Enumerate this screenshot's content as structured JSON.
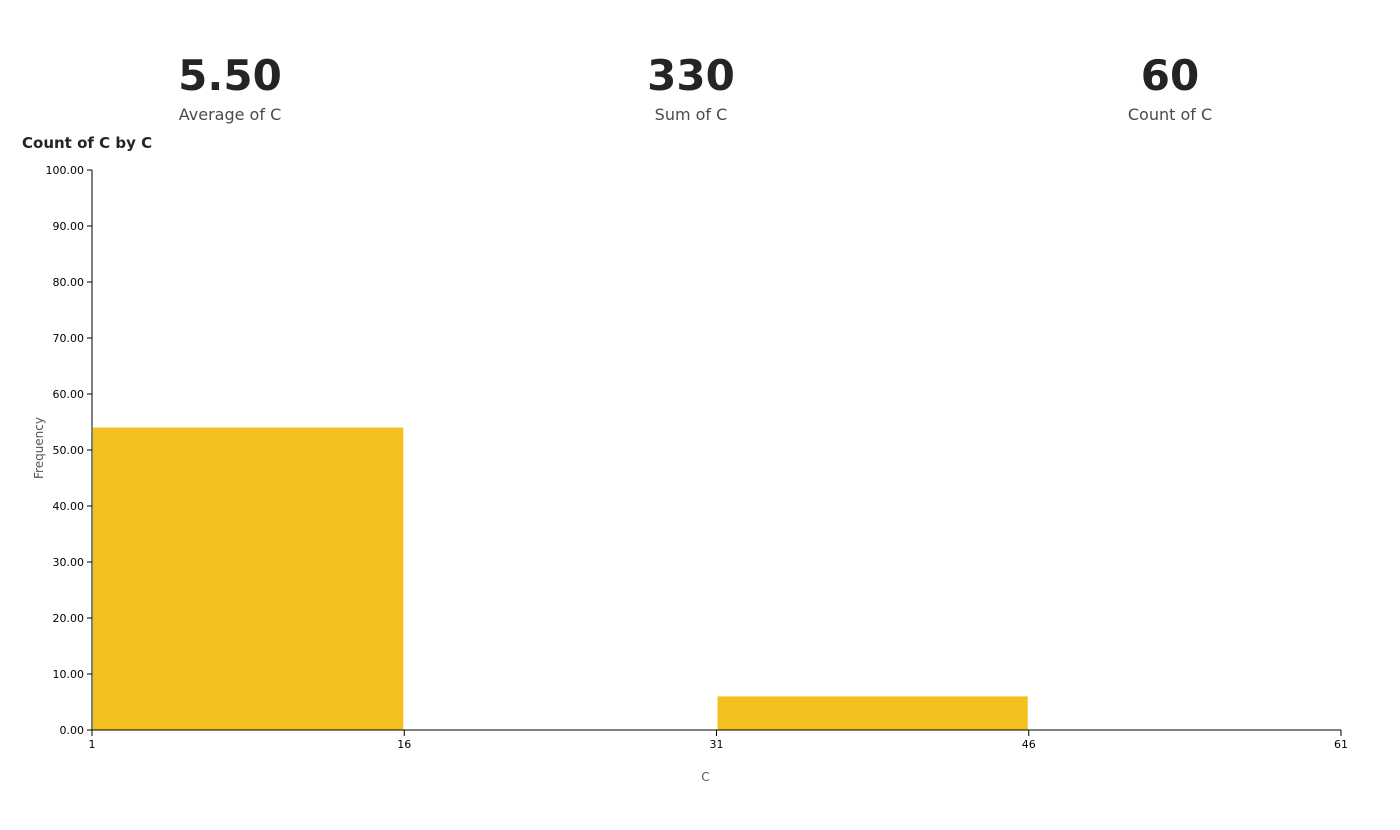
{
  "kpis": [
    {
      "value": "5.50",
      "label": "Average of C"
    },
    {
      "value": "330",
      "label": "Sum of C"
    },
    {
      "value": "60",
      "label": "Count of C"
    }
  ],
  "chart_data": {
    "type": "bar",
    "title": "Count of C by C",
    "xlabel": "C",
    "ylabel": "Frequency",
    "xlim": [
      1,
      61
    ],
    "ylim": [
      0,
      100
    ],
    "x_ticks": [
      "1",
      "16",
      "31",
      "46",
      "61"
    ],
    "y_ticks": [
      "0.00",
      "10.00",
      "20.00",
      "30.00",
      "40.00",
      "50.00",
      "60.00",
      "70.00",
      "80.00",
      "90.00",
      "100.00"
    ],
    "bins": [
      {
        "start": 1,
        "end": 16,
        "value": 54
      },
      {
        "start": 16,
        "end": 31,
        "value": 0
      },
      {
        "start": 31,
        "end": 46,
        "value": 6
      },
      {
        "start": 46,
        "end": 61,
        "value": 0
      }
    ],
    "bar_color": "#F2C01F",
    "grid": false
  }
}
